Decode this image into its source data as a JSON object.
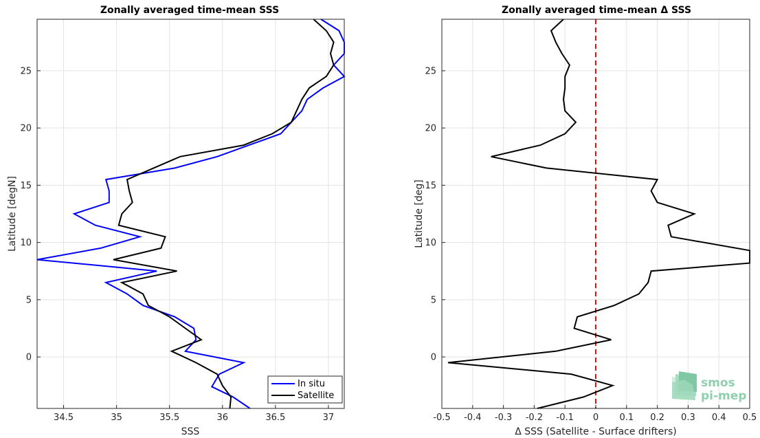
{
  "chart_data": [
    {
      "type": "line",
      "title": "Zonally averaged time-mean SSS",
      "xlabel": "SSS",
      "ylabel": "Latitude [degN]",
      "xlim": [
        34.25,
        37.15
      ],
      "ylim": [
        -4.5,
        29.5
      ],
      "xticks": [
        34.5,
        35,
        35.5,
        36,
        36.5,
        37
      ],
      "xtick_labels": [
        "34.5",
        "35",
        "35.5",
        "36",
        "36.5",
        "37"
      ],
      "yticks": [
        0,
        5,
        10,
        15,
        20,
        25
      ],
      "ytick_labels": [
        "0",
        "5",
        "10",
        "15",
        "20",
        "25"
      ],
      "grid": true,
      "legend": "bottom-right",
      "series": [
        {
          "name": "In situ",
          "color": "#0000ff",
          "points": [
            [
              36.26,
              -4.5
            ],
            [
              36.1,
              -3.5
            ],
            [
              35.9,
              -2.6
            ],
            [
              35.97,
              -1.5
            ],
            [
              36.2,
              -0.5
            ],
            [
              35.65,
              0.5
            ],
            [
              35.75,
              1.5
            ],
            [
              35.73,
              2.5
            ],
            [
              35.55,
              3.5
            ],
            [
              35.25,
              4.5
            ],
            [
              35.1,
              5.5
            ],
            [
              34.9,
              6.5
            ],
            [
              35.38,
              7.5
            ],
            [
              34.25,
              8.5
            ],
            [
              34.85,
              9.5
            ],
            [
              35.22,
              10.5
            ],
            [
              34.8,
              11.5
            ],
            [
              34.6,
              12.5
            ],
            [
              34.93,
              13.5
            ],
            [
              34.93,
              14.5
            ],
            [
              34.9,
              15.5
            ],
            [
              35.55,
              16.5
            ],
            [
              35.95,
              17.5
            ],
            [
              36.25,
              18.5
            ],
            [
              36.55,
              19.5
            ],
            [
              36.65,
              20.5
            ],
            [
              36.75,
              21.5
            ],
            [
              36.8,
              22.5
            ],
            [
              36.95,
              23.5
            ],
            [
              37.15,
              24.5
            ],
            [
              37.05,
              25.5
            ],
            [
              37.15,
              26.5
            ],
            [
              37.15,
              27.5
            ],
            [
              37.1,
              28.5
            ],
            [
              36.93,
              29.5
            ]
          ]
        },
        {
          "name": "Satellite",
          "color": "#000000",
          "points": [
            [
              36.07,
              -4.5
            ],
            [
              36.08,
              -3.5
            ],
            [
              36.0,
              -2.5
            ],
            [
              35.95,
              -1.5
            ],
            [
              35.75,
              -0.5
            ],
            [
              35.52,
              0.5
            ],
            [
              35.8,
              1.5
            ],
            [
              35.65,
              2.5
            ],
            [
              35.5,
              3.5
            ],
            [
              35.3,
              4.5
            ],
            [
              35.25,
              5.5
            ],
            [
              35.05,
              6.5
            ],
            [
              35.57,
              7.5
            ],
            [
              34.97,
              8.5
            ],
            [
              35.42,
              9.5
            ],
            [
              35.46,
              10.5
            ],
            [
              35.02,
              11.5
            ],
            [
              35.05,
              12.5
            ],
            [
              35.15,
              13.5
            ],
            [
              35.12,
              14.5
            ],
            [
              35.1,
              15.5
            ],
            [
              35.35,
              16.5
            ],
            [
              35.6,
              17.5
            ],
            [
              36.2,
              18.5
            ],
            [
              36.47,
              19.5
            ],
            [
              36.65,
              20.5
            ],
            [
              36.7,
              21.5
            ],
            [
              36.75,
              22.5
            ],
            [
              36.82,
              23.5
            ],
            [
              36.98,
              24.5
            ],
            [
              37.05,
              25.5
            ],
            [
              37.02,
              26.5
            ],
            [
              37.05,
              27.5
            ],
            [
              36.98,
              28.5
            ],
            [
              36.86,
              29.5
            ]
          ]
        }
      ]
    },
    {
      "type": "line",
      "title": "Zonally averaged time-mean Δ SSS",
      "xlabel": "Δ SSS (Satellite - Surface drifters)",
      "ylabel": "Latitude [deg]",
      "xlim": [
        -0.5,
        0.5
      ],
      "ylim": [
        -4.5,
        29.5
      ],
      "xticks": [
        -0.5,
        -0.4,
        -0.3,
        -0.2,
        -0.1,
        0,
        0.1,
        0.2,
        0.3,
        0.4,
        0.5
      ],
      "xtick_labels": [
        "-0.5",
        "-0.4",
        "-0.3",
        "-0.2",
        "-0.1",
        "0",
        "0.1",
        "0.2",
        "0.3",
        "0.4",
        "0.5"
      ],
      "yticks": [
        0,
        5,
        10,
        15,
        20,
        25
      ],
      "ytick_labels": [
        "0",
        "5",
        "10",
        "15",
        "20",
        "25"
      ],
      "grid": true,
      "reference_line": {
        "x": 0,
        "color": "#ff0000",
        "style": "dashed"
      },
      "series": [
        {
          "color": "#000000",
          "points": [
            [
              -0.19,
              -4.5
            ],
            [
              -0.04,
              -3.5
            ],
            [
              0.055,
              -2.5
            ],
            [
              -0.08,
              -1.5
            ],
            [
              -0.48,
              -0.5
            ],
            [
              -0.13,
              0.5
            ],
            [
              0.05,
              1.5
            ],
            [
              -0.07,
              2.5
            ],
            [
              -0.06,
              3.5
            ],
            [
              0.06,
              4.5
            ],
            [
              0.14,
              5.5
            ],
            [
              0.17,
              6.5
            ],
            [
              0.18,
              7.5
            ],
            [
              0.5,
              8.2
            ],
            [
              0.5,
              9.3
            ],
            [
              0.245,
              10.5
            ],
            [
              0.235,
              11.5
            ],
            [
              0.32,
              12.5
            ],
            [
              0.2,
              13.5
            ],
            [
              0.18,
              14.5
            ],
            [
              0.2,
              15.5
            ],
            [
              -0.16,
              16.5
            ],
            [
              -0.34,
              17.5
            ],
            [
              -0.18,
              18.5
            ],
            [
              -0.1,
              19.5
            ],
            [
              -0.065,
              20.5
            ],
            [
              -0.1,
              21.5
            ],
            [
              -0.105,
              22.5
            ],
            [
              -0.1,
              23.5
            ],
            [
              -0.1,
              24.5
            ],
            [
              -0.085,
              25.5
            ],
            [
              -0.11,
              26.5
            ],
            [
              -0.13,
              27.5
            ],
            [
              -0.145,
              28.5
            ],
            [
              -0.105,
              29.5
            ]
          ]
        }
      ]
    }
  ],
  "logo": {
    "line1": "smos",
    "line2": "pi-mep",
    "color": "#8fcfae"
  }
}
